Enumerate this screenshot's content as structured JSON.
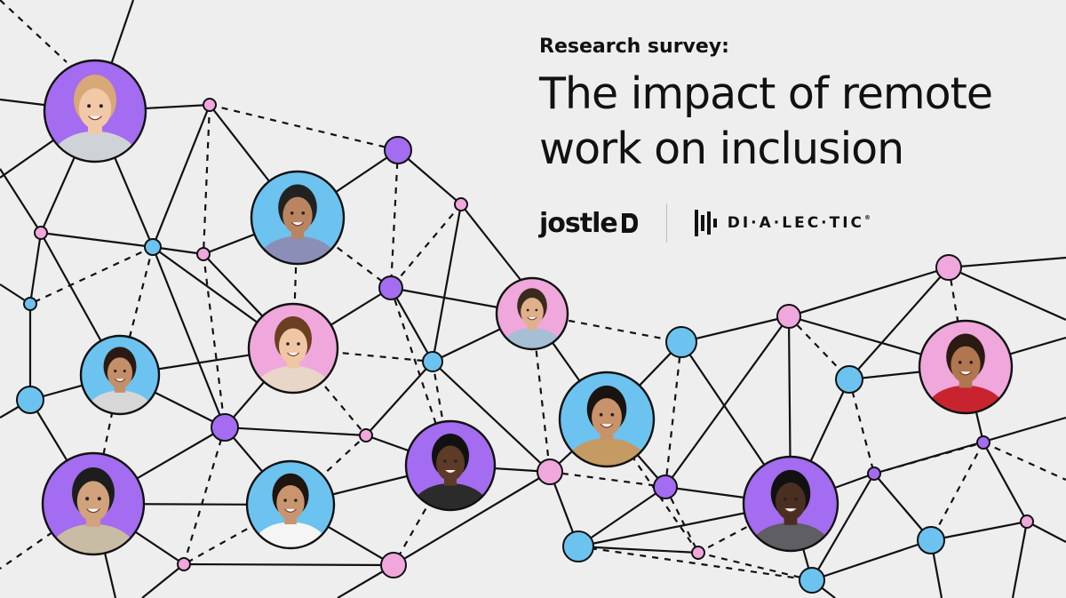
{
  "header": {
    "kicker": "Research survey:",
    "headline_line1": "The impact of remote",
    "headline_line2": "work on inclusion"
  },
  "brands": {
    "jostle": "jostle",
    "dialectic": "DI·A·LEC·TIC"
  },
  "colors": {
    "background": "#efeeee",
    "purple": "#a46cf0",
    "blue": "#6cc3f0",
    "pink": "#f0a7dc",
    "line": "#111111"
  },
  "people": [
    {
      "name": "woman-red-hair",
      "bg": "purple"
    },
    {
      "name": "man-glasses-plaid",
      "bg": "blue"
    },
    {
      "name": "woman-curly-hair",
      "bg": "pink"
    },
    {
      "name": "woman-short-curls",
      "bg": "blue"
    },
    {
      "name": "man-beard-blazer",
      "bg": "purple"
    },
    {
      "name": "woman-glasses",
      "bg": "blue"
    },
    {
      "name": "woman-short-hair",
      "bg": "purple"
    },
    {
      "name": "man-suit",
      "bg": "pink"
    },
    {
      "name": "woman-laughing",
      "bg": "blue"
    },
    {
      "name": "man-turtleneck",
      "bg": "purple"
    },
    {
      "name": "woman-red-sweater",
      "bg": "pink"
    }
  ]
}
